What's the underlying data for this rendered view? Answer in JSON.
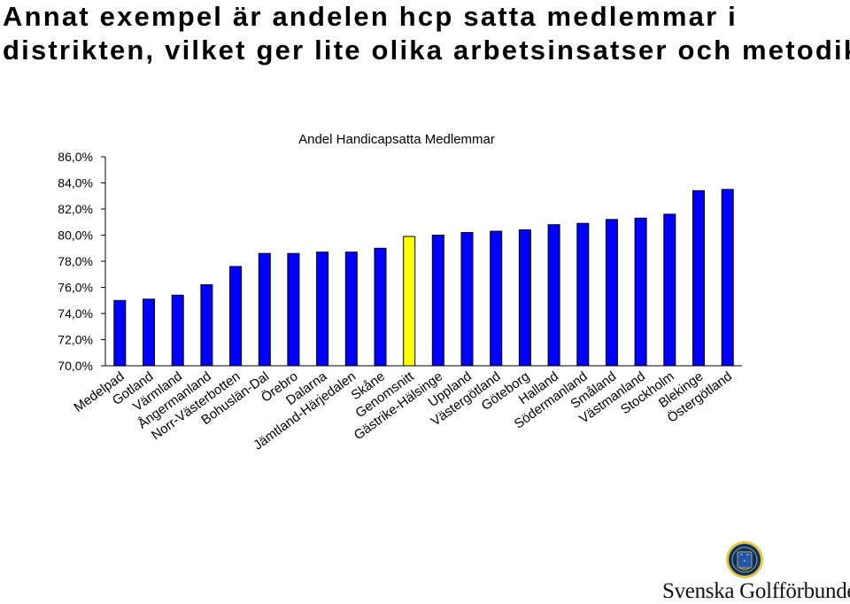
{
  "slide": {
    "title_line1": "Annat exempel är andelen hcp satta medlemmar i",
    "title_line2": "distrikten, vilket ger lite olika arbetsinsatser och metodik"
  },
  "chart_data": {
    "type": "bar",
    "title": "Andel Handicapsatta Medlemmar",
    "xlabel": "",
    "ylabel": "",
    "ylim": [
      70,
      86
    ],
    "yticks": [
      "70,0%",
      "72,0%",
      "74,0%",
      "76,0%",
      "78,0%",
      "80,0%",
      "82,0%",
      "84,0%",
      "86,0%"
    ],
    "grid": false,
    "categories": [
      "Medelpad",
      "Gotland",
      "Värmland",
      "Ångermanland",
      "Norr-Västerbotten",
      "Bohuslän-Dal",
      "Örebro",
      "Dalarna",
      "Jämtland-Härjedalen",
      "Skåne",
      "Genomsnitt",
      "Gästrike-Hälsinge",
      "Uppland",
      "Västergötland",
      "Göteborg",
      "Halland",
      "Södermanland",
      "Småland",
      "Västmanland",
      "Stockholm",
      "Blekinge",
      "Östergötland"
    ],
    "values": [
      75.0,
      75.1,
      75.4,
      76.2,
      77.6,
      78.6,
      78.6,
      78.7,
      78.7,
      79.0,
      79.9,
      80.0,
      80.2,
      80.3,
      80.4,
      80.8,
      80.9,
      81.2,
      81.3,
      81.6,
      83.4,
      83.5
    ],
    "highlight_category": "Genomsnitt",
    "colors": {
      "bar": "#0000ff",
      "highlight": "#ffff00",
      "outline": "#000000"
    }
  },
  "logo": {
    "text": "Svenska Golfförbundet",
    "icon": "golf-federation-crest-icon",
    "colors": {
      "crest": "#0b2f6b",
      "ring": "#e8c63a"
    }
  }
}
